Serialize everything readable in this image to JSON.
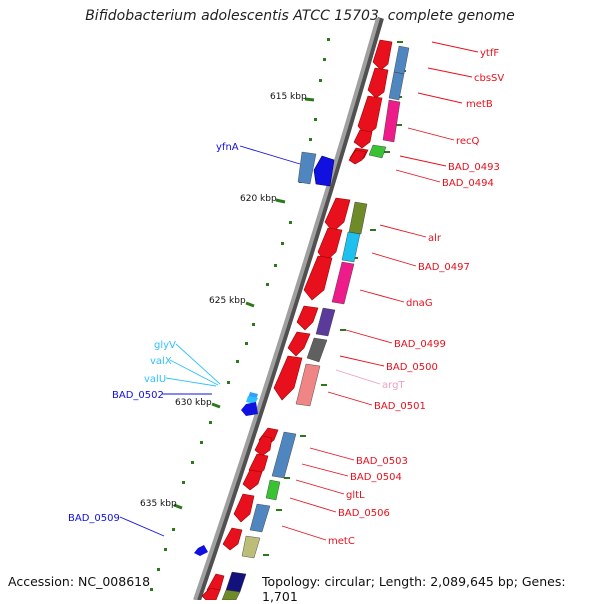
{
  "title": "Bifidobacterium adolescentis ATCC 15703, complete genome",
  "footer": {
    "accession": "Accession: NC_008618",
    "topology": "Topology: circular; Length: 2,089,645 bp; Genes: 1,701"
  },
  "colors": {
    "forward_gene": "#e8101c",
    "reverse_gene": "#1010e0",
    "backbone": "#808080",
    "tick": "#2a7a1a"
  },
  "ticks": [
    "615 kbp",
    "620 kbp",
    "625 kbp",
    "630 kbp",
    "635 kbp"
  ],
  "gene_labels": {
    "ytfF": "ytfF",
    "cbsSV": "cbsSV",
    "metB": "metB",
    "recQ": "recQ",
    "BAD_0493": "BAD_0493",
    "BAD_0494": "BAD_0494",
    "yfnA": "yfnA",
    "alr": "alr",
    "BAD_0497": "BAD_0497",
    "dnaG": "dnaG",
    "BAD_0499": "BAD_0499",
    "BAD_0500": "BAD_0500",
    "argT": "argT",
    "BAD_0501": "BAD_0501",
    "glyV": "glyV",
    "valX": "valX",
    "valU": "valU",
    "BAD_0502": "BAD_0502",
    "BAD_0503": "BAD_0503",
    "BAD_0504": "BAD_0504",
    "gltL": "gltL",
    "BAD_0506": "BAD_0506",
    "BAD_0509": "BAD_0509",
    "metC": "metC"
  }
}
